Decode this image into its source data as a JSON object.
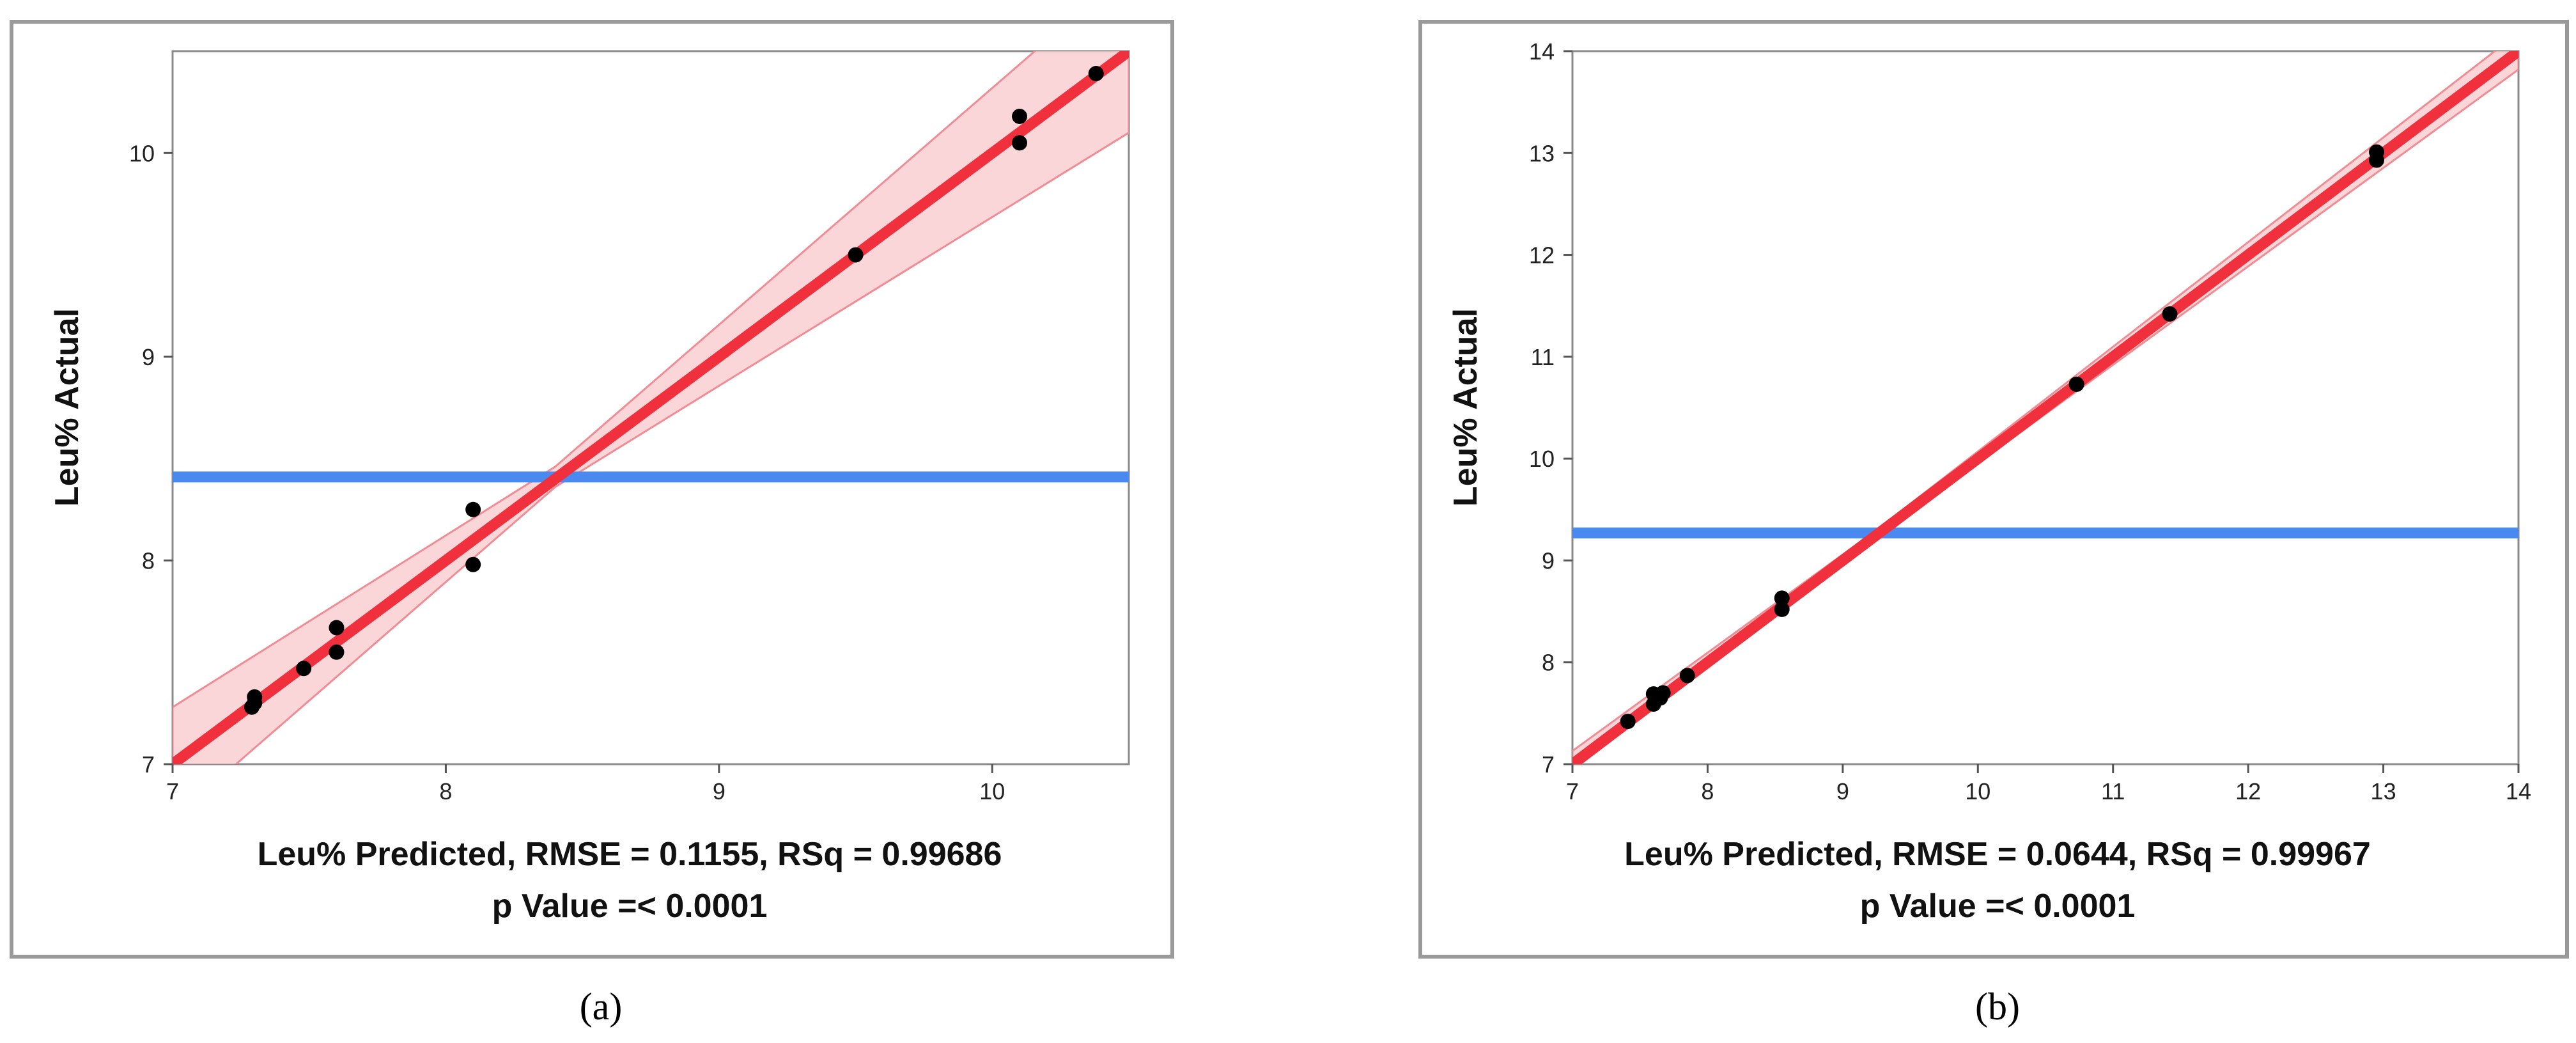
{
  "chart_data": [
    {
      "type": "scatter",
      "caption": "(a)",
      "ylabel": "Leu% Actual",
      "xlabel_line1": "Leu% Predicted, RMSE = 0.1155, RSq = 0.99686",
      "xlabel_line2": "p Value =< 0.0001",
      "xlim": [
        7,
        10.5
      ],
      "ylim": [
        7,
        10.5
      ],
      "xticks": [
        7,
        8,
        9,
        10
      ],
      "yticks": [
        7,
        8,
        9,
        10
      ],
      "mean_line_y": 8.41,
      "fit_line": [
        [
          7,
          7.0
        ],
        [
          10.5,
          10.5
        ]
      ],
      "confidence_band": {
        "x": [
          7.0,
          8.4,
          10.5
        ],
        "lower": [
          6.73,
          8.36,
          10.1
        ],
        "upper": [
          7.28,
          8.46,
          10.9
        ]
      },
      "points": [
        [
          7.29,
          7.28
        ],
        [
          7.3,
          7.3
        ],
        [
          7.3,
          7.33
        ],
        [
          7.48,
          7.47
        ],
        [
          7.6,
          7.55
        ],
        [
          7.6,
          7.67
        ],
        [
          8.1,
          7.98
        ],
        [
          8.1,
          8.25
        ],
        [
          9.5,
          9.5
        ],
        [
          10.1,
          10.05
        ],
        [
          10.1,
          10.18
        ],
        [
          10.38,
          10.39
        ]
      ],
      "colors": {
        "fit": "#f0303c",
        "band": "#f8c8cc",
        "band_edge": "#f08c94",
        "mean": "#4a8af0",
        "points": "#000000"
      }
    },
    {
      "type": "scatter",
      "caption": "(b)",
      "ylabel": "Leu% Actual",
      "xlabel_line1": "Leu% Predicted, RMSE = 0.0644, RSq = 0.99967",
      "xlabel_line2": "p Value =< 0.0001",
      "xlim": [
        7,
        14
      ],
      "ylim": [
        7,
        14
      ],
      "xticks": [
        7,
        8,
        9,
        10,
        11,
        12,
        13,
        14
      ],
      "yticks": [
        7,
        8,
        9,
        10,
        11,
        12,
        13,
        14
      ],
      "mean_line_y": 9.27,
      "fit_line": [
        [
          7,
          7.0
        ],
        [
          14,
          14.0
        ]
      ],
      "confidence_band": {
        "x": [
          7.0,
          9.25,
          14.0
        ],
        "lower": [
          6.94,
          9.23,
          13.82
        ],
        "upper": [
          7.13,
          9.3,
          14.18
        ]
      },
      "points": [
        [
          7.41,
          7.42
        ],
        [
          7.6,
          7.59
        ],
        [
          7.6,
          7.69
        ],
        [
          7.65,
          7.65
        ],
        [
          7.67,
          7.7
        ],
        [
          7.85,
          7.87
        ],
        [
          8.55,
          8.52
        ],
        [
          8.55,
          8.63
        ],
        [
          10.73,
          10.73
        ],
        [
          11.42,
          11.42
        ],
        [
          12.95,
          12.93
        ],
        [
          12.95,
          13.01
        ]
      ],
      "colors": {
        "fit": "#f0303c",
        "band": "#f8c8cc",
        "band_edge": "#f08c94",
        "mean": "#4a8af0",
        "points": "#000000"
      }
    }
  ]
}
